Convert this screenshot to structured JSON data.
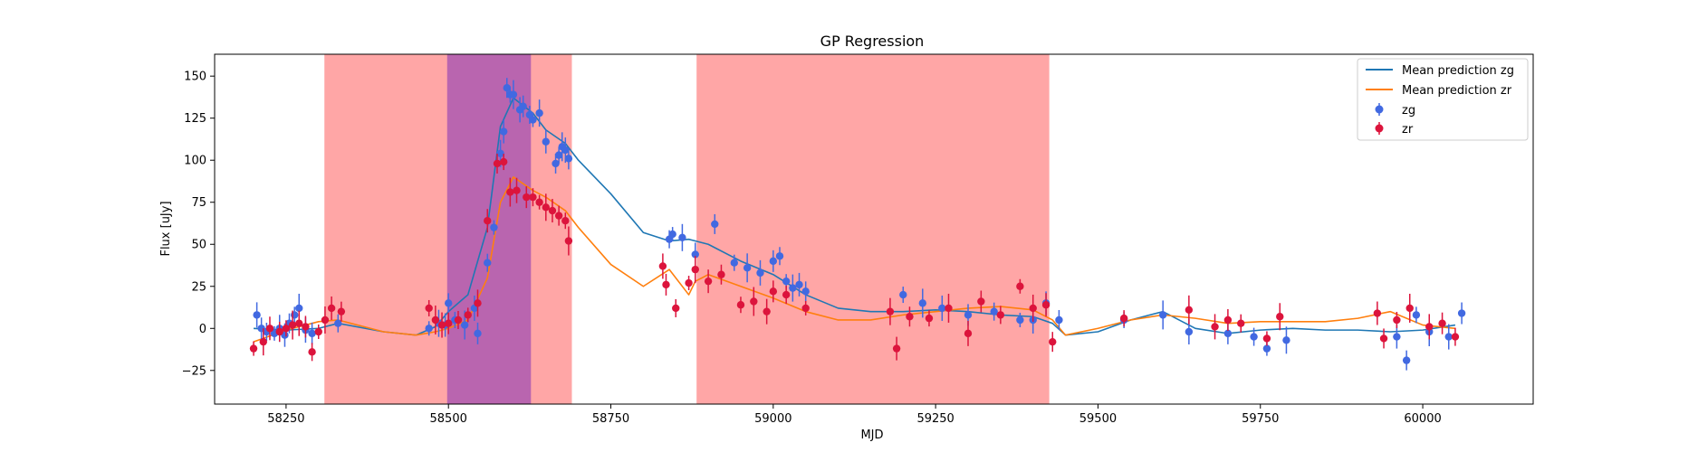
{
  "chart_data": {
    "type": "scatter",
    "title": "GP Regression",
    "xlabel": "MJD",
    "ylabel": "Flux [uJy]",
    "xlim": [
      58140,
      60170
    ],
    "ylim": [
      -45,
      163
    ],
    "x_ticks": [
      58250,
      58500,
      58750,
      59000,
      59250,
      59500,
      59750,
      60000
    ],
    "y_ticks": [
      -25,
      0,
      25,
      50,
      75,
      100,
      125,
      150
    ],
    "grid": false,
    "legend_position": "top-right",
    "legend": [
      "Mean prediction zg",
      "Mean prediction zr",
      "zg",
      "zr"
    ],
    "shaded_regions": [
      {
        "x0": 58309,
        "x1": 58690,
        "color": "#ff6b6b"
      },
      {
        "x0": 58498,
        "x1": 58627,
        "color": "#8b3bb5"
      },
      {
        "x0": 58882,
        "x1": 59425,
        "color": "#ff6b6b"
      }
    ],
    "series": [
      {
        "name": "Mean prediction zg",
        "kind": "line",
        "color": "#1f77b4",
        "x": [
          58200,
          58250,
          58300,
          58330,
          58400,
          58450,
          58480,
          58500,
          58530,
          58560,
          58580,
          58600,
          58630,
          58650,
          58680,
          58700,
          58750,
          58800,
          58840,
          58870,
          58900,
          58950,
          59000,
          59050,
          59100,
          59150,
          59200,
          59250,
          59300,
          59350,
          59400,
          59430,
          59450,
          59500,
          59550,
          59600,
          59650,
          59700,
          59750,
          59800,
          59850,
          59900,
          59950,
          60000,
          60050
        ],
        "y": [
          0,
          -1,
          0,
          3,
          -2,
          -4,
          1,
          10,
          20,
          60,
          120,
          137,
          128,
          118,
          110,
          100,
          80,
          57,
          52,
          53,
          50,
          40,
          32,
          20,
          12,
          10,
          10,
          11,
          10,
          8,
          7,
          3,
          -4,
          -2,
          5,
          10,
          0,
          -3,
          -1,
          0,
          -1,
          -1,
          -2,
          -1,
          2
        ]
      },
      {
        "name": "Mean prediction zr",
        "kind": "line",
        "color": "#ff7f0e",
        "x": [
          58200,
          58250,
          58300,
          58330,
          58400,
          58450,
          58480,
          58500,
          58530,
          58560,
          58580,
          58600,
          58630,
          58650,
          58680,
          58700,
          58750,
          58800,
          58840,
          58870,
          58880,
          58900,
          58950,
          59000,
          59050,
          59100,
          59150,
          59200,
          59250,
          59300,
          59350,
          59400,
          59430,
          59450,
          59500,
          59550,
          59600,
          59650,
          59700,
          59750,
          59800,
          59850,
          59900,
          59950,
          60000,
          60050
        ],
        "y": [
          -8,
          -1,
          4,
          5,
          -2,
          -4,
          -2,
          0,
          5,
          30,
          75,
          90,
          82,
          78,
          70,
          60,
          38,
          25,
          35,
          20,
          28,
          32,
          25,
          18,
          10,
          5,
          5,
          8,
          10,
          12,
          13,
          11,
          5,
          -4,
          0,
          5,
          8,
          6,
          3,
          4,
          4,
          4,
          6,
          10,
          2,
          0
        ]
      },
      {
        "name": "zg",
        "kind": "points",
        "color": "#4169e1",
        "x": [
          58205,
          58212,
          58220,
          58232,
          58240,
          58248,
          58255,
          58263,
          58270,
          58280,
          58290,
          58330,
          58470,
          58485,
          58495,
          58500,
          58510,
          58525,
          58540,
          58545,
          58560,
          58570,
          58580,
          58585,
          58590,
          58595,
          58600,
          58610,
          58615,
          58625,
          58630,
          58640,
          58650,
          58665,
          58670,
          58675,
          58680,
          58685,
          58840,
          58845,
          58860,
          58880,
          58910,
          58940,
          58960,
          58980,
          59000,
          59010,
          59020,
          59030,
          59040,
          59050,
          59200,
          59230,
          59260,
          59300,
          59340,
          59380,
          59400,
          59420,
          59440,
          59540,
          59600,
          59640,
          59700,
          59740,
          59760,
          59790,
          59960,
          59975,
          59990,
          60010,
          60040,
          60060
        ],
        "y": [
          8,
          0,
          -2,
          -3,
          0,
          -4,
          3,
          8,
          12,
          -1,
          -3,
          3,
          0,
          3,
          2,
          15,
          5,
          2,
          12,
          -3,
          39,
          60,
          104,
          117,
          143,
          139,
          139,
          130,
          132,
          127,
          124,
          128,
          111,
          98,
          103,
          108,
          106,
          101,
          53,
          56,
          54,
          44,
          62,
          39,
          36,
          33,
          40,
          43,
          28,
          24,
          26,
          22,
          20,
          15,
          12,
          8,
          10,
          5,
          5,
          15,
          5,
          5,
          8,
          -2,
          -3,
          -5,
          -12,
          -7,
          -5,
          -19,
          8,
          -2,
          -5,
          9
        ]
      },
      {
        "name": "zr",
        "kind": "points",
        "color": "#dc143c",
        "x": [
          58200,
          58215,
          58225,
          58240,
          58250,
          58260,
          58270,
          58280,
          58290,
          58300,
          58310,
          58320,
          58335,
          58470,
          58480,
          58490,
          58500,
          58515,
          58530,
          58545,
          58560,
          58575,
          58585,
          58595,
          58605,
          58620,
          58630,
          58640,
          58650,
          58660,
          58670,
          58680,
          58685,
          58830,
          58835,
          58850,
          58870,
          58880,
          58900,
          58920,
          58950,
          58970,
          58990,
          59000,
          59020,
          59050,
          59180,
          59190,
          59210,
          59240,
          59270,
          59300,
          59320,
          59350,
          59380,
          59400,
          59420,
          59430,
          59540,
          59640,
          59680,
          59700,
          59720,
          59760,
          59780,
          59930,
          59940,
          59960,
          59980,
          60010,
          60030,
          60050
        ],
        "y": [
          -12,
          -8,
          0,
          -2,
          0,
          2,
          3,
          1,
          -14,
          -2,
          5,
          12,
          10,
          12,
          5,
          2,
          3,
          5,
          8,
          15,
          64,
          98,
          99,
          81,
          82,
          78,
          78,
          75,
          72,
          70,
          67,
          64,
          52,
          37,
          26,
          12,
          27,
          35,
          28,
          32,
          14,
          16,
          10,
          22,
          20,
          12,
          10,
          -12,
          7,
          6,
          12,
          -3,
          16,
          8,
          25,
          12,
          14,
          -8,
          6,
          11,
          1,
          5,
          3,
          -6,
          7,
          9,
          -6,
          5,
          12,
          1,
          3,
          -5
        ]
      }
    ]
  }
}
